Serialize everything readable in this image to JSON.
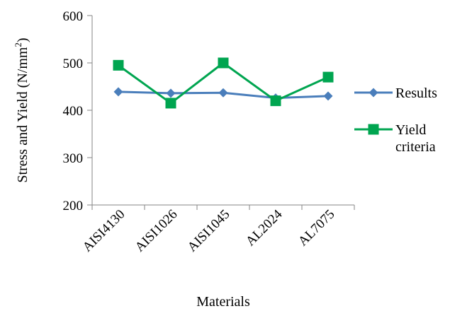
{
  "chart_data": {
    "type": "line",
    "categories": [
      "AISI4130",
      "AISI1026",
      "AISI1045",
      "AL2024",
      "AL7075"
    ],
    "series": [
      {
        "name": "Results",
        "values": [
          439,
          436,
          437,
          426,
          430
        ],
        "color": "#4A7EBB",
        "marker": "diamond"
      },
      {
        "name": "Yield criteria",
        "name_lines": [
          "Yield",
          "criteria"
        ],
        "values": [
          495,
          415,
          500,
          420,
          470
        ],
        "color": "#00A550",
        "marker": "square"
      }
    ],
    "xlabel": "Materials",
    "ylabel": "Stress and Yield (N/mm",
    "ylabel_sup": "2",
    "ylabel_end": ")",
    "ylim": [
      200,
      600
    ],
    "yticks": [
      "200",
      "300",
      "400",
      "500",
      "600"
    ],
    "grid": false,
    "legend": "right"
  }
}
